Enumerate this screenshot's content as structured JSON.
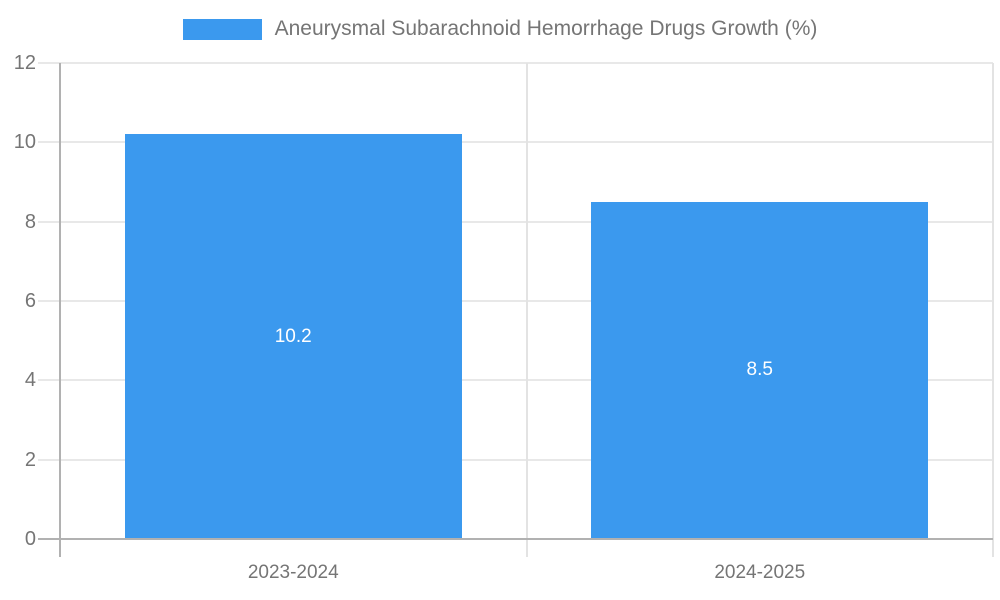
{
  "chart_data": {
    "type": "bar",
    "title": "Aneurysmal Subarachnoid Hemorrhage Drugs Growth (%)",
    "legend": {
      "position": "top",
      "label": "Aneurysmal Subarachnoid Hemorrhage Drugs Growth (%)"
    },
    "categories": [
      "2023-2024",
      "2024-2025"
    ],
    "series": [
      {
        "name": "Aneurysmal Subarachnoid Hemorrhage Drugs Growth (%)",
        "values": [
          10.2,
          8.5
        ]
      }
    ],
    "value_labels": [
      "10.2",
      "8.5"
    ],
    "xlabel": "",
    "ylabel": "",
    "ylim": [
      0,
      12
    ],
    "yticks": [
      0,
      2,
      4,
      6,
      8,
      10,
      12
    ],
    "grid": true,
    "colors": {
      "bar": "#3B99EE",
      "axis_text": "#757575",
      "gridline": "#e8e8e8",
      "axis_line": "#b1b1b1",
      "value_label": "#ffffff",
      "background": "#ffffff"
    }
  }
}
